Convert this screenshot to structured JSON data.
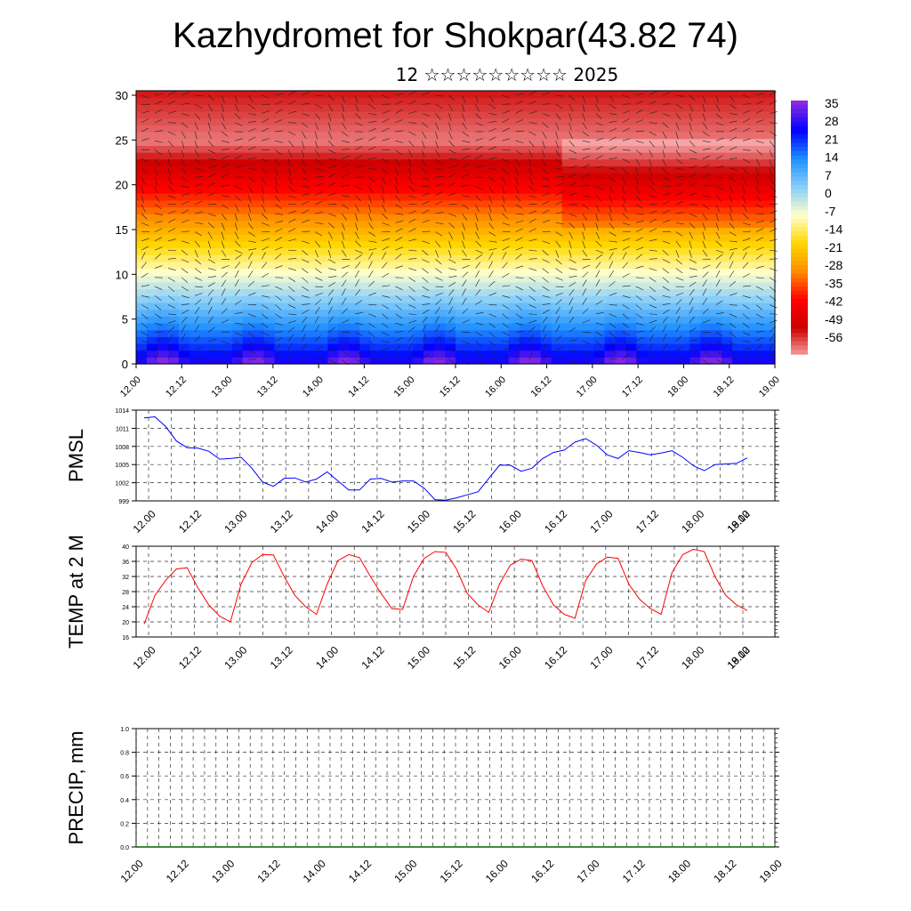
{
  "header": {
    "title": "Kazhydromet for Shokpar(43.82 74)",
    "subtitle": "12 ☆☆☆☆☆☆☆☆☆ 2025"
  },
  "colors": {
    "pmsl_line": "#0000ff",
    "temp_line": "#ff0000",
    "precip_line": "#006400",
    "grid": "#333333"
  },
  "chart_data": [
    {
      "type": "heatmap",
      "title": "",
      "xlabel": "",
      "ylabel": "",
      "x_tick_labels": [
        "12.00",
        "12.12",
        "13.00",
        "13.12",
        "14.00",
        "14.12",
        "15.00",
        "15.12",
        "16.00",
        "16.12",
        "17.00",
        "17.12",
        "18.00",
        "18.12",
        "19.00"
      ],
      "y_ticks": [
        0,
        5,
        10,
        15,
        20,
        25,
        30
      ],
      "ylim": [
        0,
        30.5
      ],
      "colorbar_labels": [
        "35",
        "28",
        "21",
        "14",
        "7",
        "0",
        "-7",
        "-14",
        "-21",
        "-28",
        "-35",
        "-42",
        "-49",
        "-56"
      ],
      "colorbar_range": [
        -60,
        38
      ],
      "colorscale": [
        "#8a2be2",
        "#0000ff",
        "#1e90ff",
        "#87cefa",
        "#ffffcc",
        "#ffd700",
        "#ff8c00",
        "#ff0000",
        "#cc0000",
        "#f5a5a5"
      ],
      "overlay": "wind barbs",
      "grid": false
    },
    {
      "type": "line",
      "ylabel": "PMSL",
      "y_tick_labels": [
        "999",
        "1002",
        "1005",
        "1008",
        "1011",
        "1014"
      ],
      "ylim": [
        999,
        1014
      ],
      "x_tick_labels": [
        "12.00",
        "12.12",
        "13.00",
        "13.12",
        "14.00",
        "14.12",
        "15.00",
        "15.12",
        "16.00",
        "16.12",
        "17.00",
        "17.12",
        "18.00",
        "18.12",
        "19.00"
      ],
      "series": [
        {
          "values": [
            1012.7,
            1012.9,
            1011.3,
            1008.9,
            1007.8,
            1007.7,
            1007.2,
            1005.9,
            1006.0,
            1006.2,
            1004.4,
            1002.1,
            1001.4,
            1002.7,
            1002.8,
            1002.1,
            1002.6,
            1003.8,
            1002.3,
            1000.8,
            1000.8,
            1002.6,
            1002.7,
            1002.1,
            1002.3,
            1002.3,
            1001.1,
            999.2,
            999.1,
            999.5,
            1000.0,
            1000.5,
            1002.7,
            1004.9,
            1004.9,
            1003.9,
            1004.4,
            1006.0,
            1007.0,
            1007.4,
            1008.7,
            1009.3,
            1008.2,
            1006.6,
            1006.0,
            1007.3,
            1007.0,
            1006.6,
            1006.9,
            1007.3,
            1006.2,
            1004.8,
            1004.0,
            1005.0,
            1005.1,
            1005.2,
            1006.1
          ]
        }
      ],
      "grid": true
    },
    {
      "type": "line",
      "ylabel": "TEMP at 2 M",
      "y_tick_labels": [
        "16",
        "20",
        "24",
        "28",
        "32",
        "36",
        "40"
      ],
      "ylim": [
        16,
        40
      ],
      "x_tick_labels": [
        "12.00",
        "12.12",
        "13.00",
        "13.12",
        "14.00",
        "14.12",
        "15.00",
        "15.12",
        "16.00",
        "16.12",
        "17.00",
        "17.12",
        "18.00",
        "18.12",
        "19.00"
      ],
      "series": [
        {
          "values": [
            19.4,
            27.0,
            31.0,
            34.0,
            34.3,
            29.0,
            24.5,
            21.5,
            20.0,
            30.0,
            35.7,
            37.8,
            37.7,
            32.0,
            27.0,
            24.0,
            22.0,
            30.0,
            36.2,
            37.8,
            37.0,
            32.0,
            27.5,
            23.5,
            23.3,
            32.0,
            36.8,
            38.6,
            38.4,
            34.0,
            27.5,
            24.5,
            22.5,
            30.0,
            35.0,
            36.6,
            36.2,
            29.5,
            24.5,
            22.0,
            21.0,
            31.0,
            35.3,
            37.1,
            36.8,
            30.0,
            26.0,
            23.5,
            22.0,
            33.0,
            37.8,
            39.2,
            38.6,
            32.0,
            27.0,
            24.5,
            23.0
          ]
        }
      ],
      "grid": true
    },
    {
      "type": "line",
      "ylabel": "PRECIP, mm",
      "y_tick_labels": [
        "0.0",
        "0.2",
        "0.4",
        "0.6",
        "0.8",
        "1.0"
      ],
      "ylim": [
        0,
        1
      ],
      "x_tick_labels": [
        "12.00",
        "12.12",
        "13.00",
        "13.12",
        "14.00",
        "14.12",
        "15.00",
        "15.12",
        "16.00",
        "16.12",
        "17.00",
        "17.12",
        "18.00",
        "18.12",
        "19.00"
      ],
      "series": [
        {
          "values": [
            0,
            0,
            0,
            0,
            0,
            0,
            0,
            0,
            0,
            0,
            0,
            0,
            0,
            0,
            0,
            0,
            0,
            0,
            0,
            0,
            0,
            0,
            0,
            0,
            0,
            0,
            0,
            0,
            0,
            0,
            0,
            0,
            0,
            0,
            0,
            0,
            0,
            0,
            0,
            0,
            0,
            0,
            0,
            0,
            0,
            0,
            0,
            0,
            0,
            0,
            0,
            0,
            0,
            0,
            0,
            0,
            0
          ]
        }
      ],
      "grid": true
    }
  ]
}
